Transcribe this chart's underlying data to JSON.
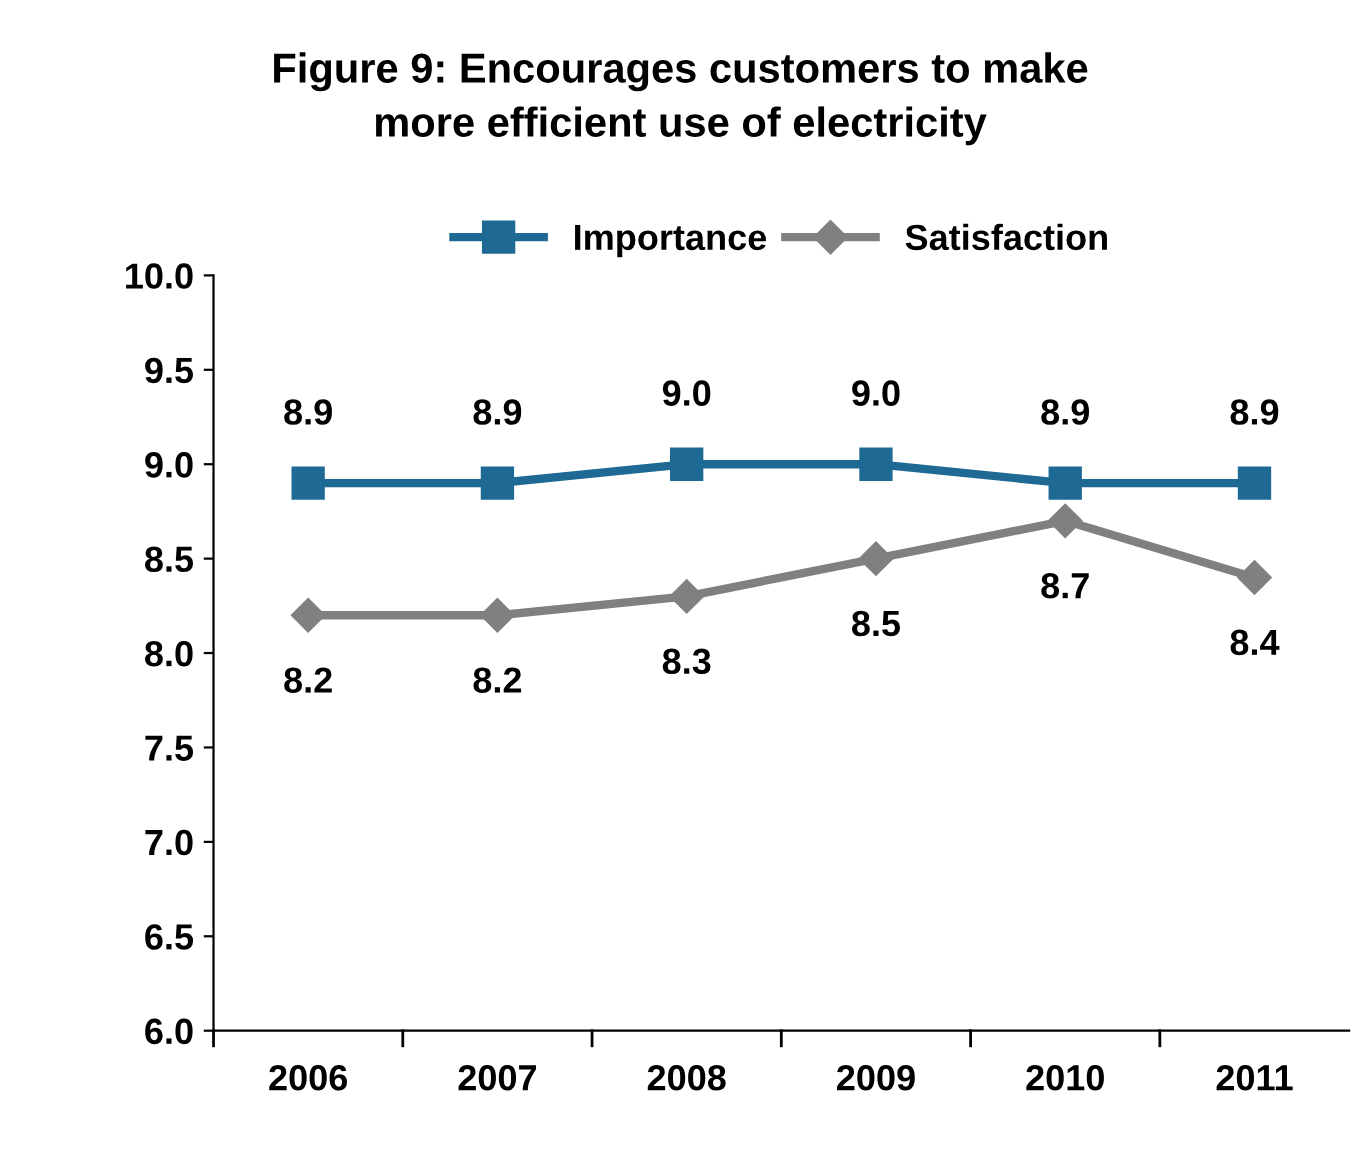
{
  "chart_data": {
    "type": "line",
    "title": "Figure 9: Encourages customers to make\nmore efficient use of electricity",
    "categories": [
      "2006",
      "2007",
      "2008",
      "2009",
      "2010",
      "2011"
    ],
    "series": [
      {
        "name": "Importance",
        "color": "#1f6a94",
        "marker": "square",
        "values": [
          8.9,
          8.9,
          9.0,
          9.0,
          8.9,
          8.9
        ],
        "value_labels": [
          "8.9",
          "8.9",
          "9.0",
          "9.0",
          "8.9",
          "8.9"
        ]
      },
      {
        "name": "Satisfaction",
        "color": "#808080",
        "marker": "diamond",
        "values": [
          8.2,
          8.2,
          8.3,
          8.5,
          8.7,
          8.4
        ],
        "value_labels": [
          "8.2",
          "8.2",
          "8.3",
          "8.5",
          "8.7",
          "8.4"
        ]
      }
    ],
    "ylim": [
      6,
      10
    ],
    "yticks": [
      {
        "value": 6,
        "label": "6.0"
      },
      {
        "value": 6.5,
        "label": "6.5"
      },
      {
        "value": 7,
        "label": "7.0"
      },
      {
        "value": 7.5,
        "label": "7.5"
      },
      {
        "value": 8,
        "label": "8.0"
      },
      {
        "value": 8.5,
        "label": "8.5"
      },
      {
        "value": 9,
        "label": "9.0"
      },
      {
        "value": 9.5,
        "label": "9.5"
      },
      {
        "value": 10,
        "label": "10.0"
      }
    ],
    "legend": "top",
    "grid": false,
    "line_style": "solid"
  }
}
